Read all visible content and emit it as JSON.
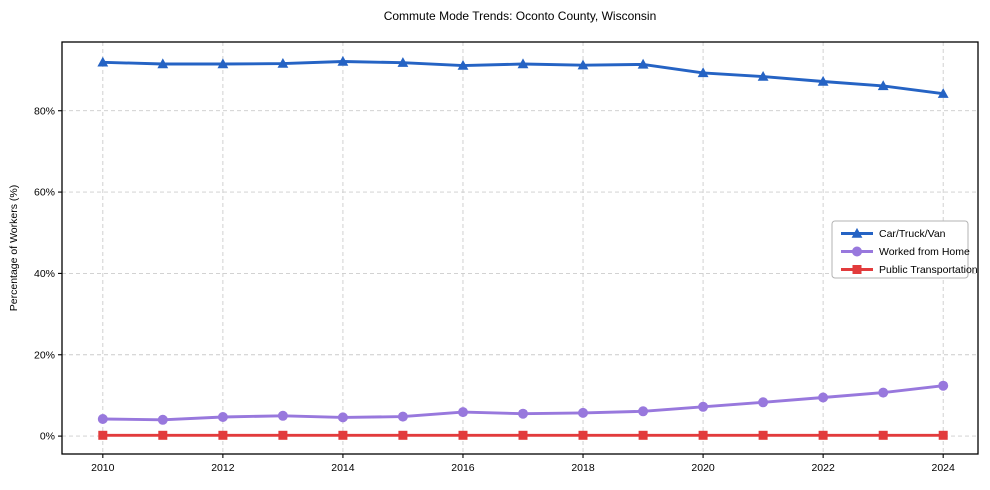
{
  "chart_data": {
    "type": "line",
    "title": "Commute Mode Trends: Oconto County, Wisconsin",
    "xlabel": "",
    "ylabel": "Percentage of Workers (%)",
    "x": [
      2010,
      2011,
      2012,
      2013,
      2014,
      2015,
      2016,
      2017,
      2018,
      2019,
      2020,
      2021,
      2022,
      2023,
      2024
    ],
    "x_ticks": [
      2010,
      2012,
      2014,
      2016,
      2018,
      2020,
      2022,
      2024
    ],
    "y_ticks": [
      0,
      20,
      40,
      60,
      80
    ],
    "y_tick_suffix": "%",
    "xlim": [
      2009.32,
      2024.58
    ],
    "ylim": [
      -4.4,
      96.9
    ],
    "grid": true,
    "grid_color": "#cccccc",
    "frame_color": "#000000",
    "legend": {
      "position": "center-right",
      "background": "#ffffff",
      "border_color": "#b3b3b3"
    },
    "series": [
      {
        "name": "Car/Truck/Van",
        "color": "#2563c4",
        "marker": "triangle",
        "values": [
          91.9,
          91.5,
          91.5,
          91.6,
          92.1,
          91.8,
          91.1,
          91.5,
          91.2,
          91.4,
          89.3,
          88.4,
          87.2,
          86.1,
          84.2
        ]
      },
      {
        "name": "Worked from Home",
        "color": "#9878dd",
        "marker": "circle",
        "values": [
          4.2,
          4.0,
          4.7,
          5.0,
          4.6,
          4.8,
          5.9,
          5.5,
          5.7,
          6.1,
          7.2,
          8.3,
          9.5,
          10.7,
          12.4
        ]
      },
      {
        "name": "Public Transportation",
        "color": "#e23b3c",
        "marker": "square",
        "values": [
          0.2,
          0.2,
          0.2,
          0.2,
          0.2,
          0.2,
          0.2,
          0.2,
          0.2,
          0.2,
          0.2,
          0.2,
          0.2,
          0.2,
          0.2
        ]
      }
    ]
  }
}
